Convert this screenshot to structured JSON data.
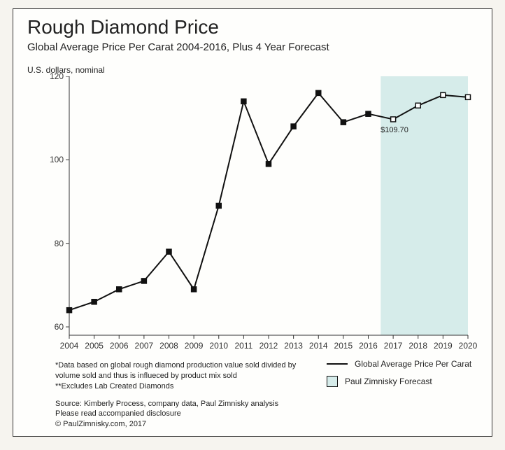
{
  "title": "Rough Diamond Price",
  "subtitle": "Global Average Price Per Carat 2004-2016, Plus 4 Year Forecast",
  "ylabel": "U.S. dollars, nominal",
  "chart": {
    "type": "line",
    "background_color": "#fefefc",
    "forecast_band_color": "#d6ecea",
    "axis_color": "#333333",
    "line_color": "#111111",
    "line_width": 2,
    "marker_size": 7,
    "historical_marker": "filled-square",
    "forecast_marker": "open-square",
    "ylim": [
      58,
      120
    ],
    "yticks": [
      60,
      80,
      100,
      120
    ],
    "xlabels": [
      "2004",
      "2005",
      "2006",
      "2007",
      "2008",
      "2009",
      "2010",
      "2011",
      "2012",
      "2013",
      "2014",
      "2015",
      "2016",
      "2017",
      "2018",
      "2019",
      "2020"
    ],
    "series": [
      {
        "x": "2004",
        "y": 64,
        "marker": "filled"
      },
      {
        "x": "2005",
        "y": 66,
        "marker": "filled"
      },
      {
        "x": "2006",
        "y": 69,
        "marker": "filled"
      },
      {
        "x": "2007",
        "y": 71,
        "marker": "filled"
      },
      {
        "x": "2008",
        "y": 78,
        "marker": "filled"
      },
      {
        "x": "2009",
        "y": 69,
        "marker": "filled"
      },
      {
        "x": "2010",
        "y": 89,
        "marker": "filled"
      },
      {
        "x": "2011",
        "y": 114,
        "marker": "filled"
      },
      {
        "x": "2012",
        "y": 99,
        "marker": "filled"
      },
      {
        "x": "2013",
        "y": 108,
        "marker": "filled"
      },
      {
        "x": "2014",
        "y": 116,
        "marker": "filled"
      },
      {
        "x": "2015",
        "y": 109,
        "marker": "filled"
      },
      {
        "x": "2016",
        "y": 111,
        "marker": "filled"
      },
      {
        "x": "2017",
        "y": 109.7,
        "marker": "open"
      },
      {
        "x": "2018",
        "y": 113,
        "marker": "open"
      },
      {
        "x": "2019",
        "y": 115.5,
        "marker": "open"
      },
      {
        "x": "2020",
        "y": 115,
        "marker": "open"
      }
    ],
    "forecast_start": "2017",
    "callout": {
      "x": "2017",
      "y": 109.7,
      "label": "$109.70"
    }
  },
  "legend": {
    "line_label": "Global Average Price Per Carat",
    "box_label": "Paul Zimnisky Forecast",
    "box_fill": "#d6ecea"
  },
  "footnotes": {
    "note1": "*Data based on global rough diamond production value sold divided by volume sold and thus is influeced by product mix sold",
    "note2": "**Excludes Lab Created Diamonds",
    "source": "Source: Kimberly Process, company data, Paul Zimnisky analysis",
    "disclosure": "Please read accompanied disclosure",
    "copyright": "© PaulZimnisky.com, 2017"
  }
}
